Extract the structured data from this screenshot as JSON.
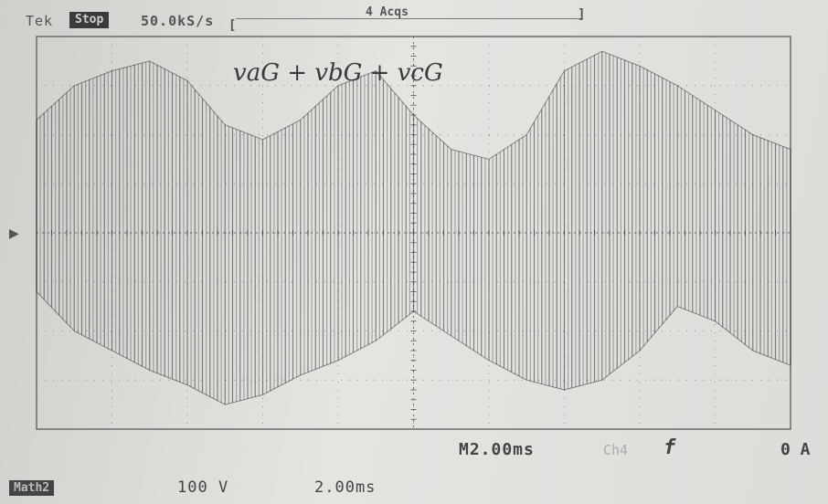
{
  "header": {
    "brand": "Tek",
    "run_state": "Stop",
    "sample_rate": "50.0kS/s",
    "acquisitions": "4 Acqs",
    "acq_left_bracket": "[",
    "acq_right_bracket": "]"
  },
  "footer": {
    "timebase": "M2.00ms",
    "trigger_channel": "Ch4",
    "trigger_slope": "f",
    "trigger_level": "0 A",
    "math_label": "Math2",
    "vertical_scale": "100 V",
    "horizontal_scale": "2.00ms"
  },
  "colors": {
    "trace": "#2e2e2e",
    "grid": "#6b6b6b",
    "background": "#dcdcd9"
  },
  "chart_data": {
    "type": "line",
    "title": "vaG + vbG + vcG",
    "xlabel": "",
    "ylabel": "",
    "xlim": [
      0,
      20
    ],
    "ylim": [
      -400,
      400
    ],
    "x_unit": "ms",
    "y_unit": "V",
    "grid": true,
    "divisions": {
      "x": 10,
      "y": 8
    },
    "series": [
      {
        "name": "vaG + vbG + vcG",
        "style": "PWM pulse envelope",
        "x": [
          0,
          1,
          2,
          3,
          4,
          5,
          6,
          7,
          8,
          9,
          10,
          11,
          12,
          13,
          14,
          15,
          16,
          17,
          18,
          19,
          20
        ],
        "upper_envelope": [
          230,
          300,
          330,
          350,
          310,
          220,
          190,
          230,
          300,
          330,
          240,
          170,
          150,
          200,
          330,
          370,
          340,
          300,
          250,
          200,
          170
        ],
        "lower_envelope": [
          -120,
          -200,
          -240,
          -280,
          -310,
          -350,
          -330,
          -290,
          -260,
          -220,
          -160,
          -210,
          -260,
          -300,
          -320,
          -300,
          -240,
          -150,
          -180,
          -240,
          -270
        ]
      }
    ]
  }
}
